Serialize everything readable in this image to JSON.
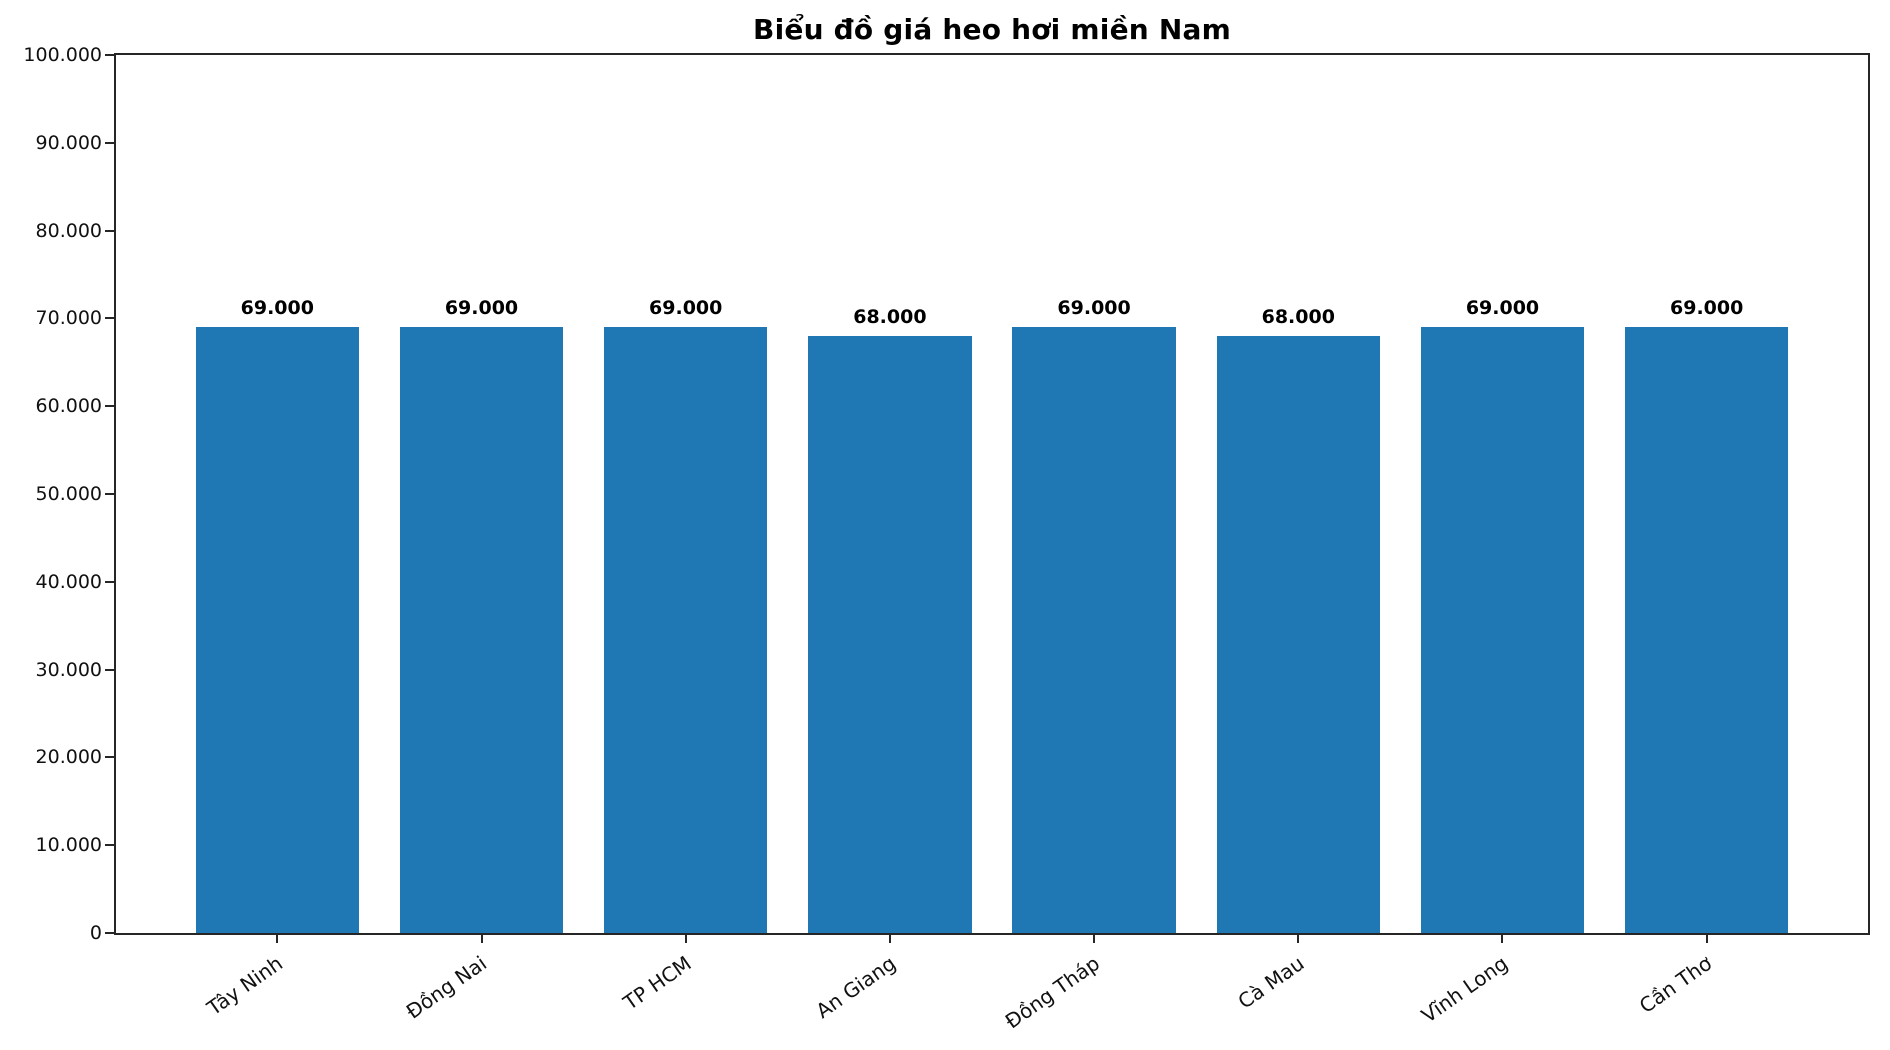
{
  "chart_data": {
    "type": "bar",
    "title": "Biểu đồ giá heo hơi miền Nam",
    "categories": [
      "Tây Ninh",
      "Đồng Nai",
      "TP HCM",
      "An Giang",
      "Đồng Tháp",
      "Cà Mau",
      "Vĩnh Long",
      "Cần Thơ"
    ],
    "values": [
      69000,
      69000,
      69000,
      68000,
      69000,
      68000,
      69000,
      69000
    ],
    "value_labels": [
      "69.000",
      "69.000",
      "69.000",
      "68.000",
      "69.000",
      "68.000",
      "69.000",
      "69.000"
    ],
    "xlabel": "",
    "ylabel": "",
    "ylim": [
      0,
      100000
    ],
    "yticks": [
      {
        "value": 0,
        "label": "0"
      },
      {
        "value": 10000,
        "label": "10.000"
      },
      {
        "value": 20000,
        "label": "20.000"
      },
      {
        "value": 30000,
        "label": "30.000"
      },
      {
        "value": 40000,
        "label": "40.000"
      },
      {
        "value": 50000,
        "label": "50.000"
      },
      {
        "value": 60000,
        "label": "60.000"
      },
      {
        "value": 70000,
        "label": "70.000"
      },
      {
        "value": 80000,
        "label": "80.000"
      },
      {
        "value": 90000,
        "label": "90.000"
      },
      {
        "value": 100000,
        "label": "100.000"
      }
    ],
    "grid": false,
    "legend": null,
    "colors": {
      "bar": "#1f77b4",
      "axis": "#262626",
      "text": "#111111",
      "background": "#ffffff"
    }
  }
}
